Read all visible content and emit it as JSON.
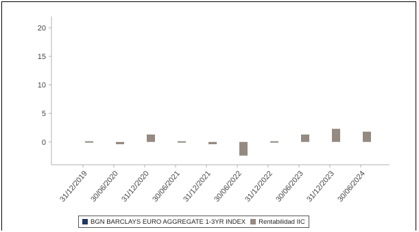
{
  "chart_data": {
    "type": "bar",
    "categories": [
      "31/12/2019",
      "30/06/2020",
      "31/12/2020",
      "30/06/2021",
      "31/12/2021",
      "30/06/2022",
      "31/12/2022",
      "30/06/2023",
      "31/12/2023",
      "30/06/2024"
    ],
    "series": [
      {
        "name": "BGN BARCLAYS EURO AGGREGATE 1-3YR INDEX",
        "color": "#1f3864",
        "values": [
          null,
          null,
          null,
          null,
          null,
          null,
          null,
          null,
          null,
          null
        ]
      },
      {
        "name": "Rentabilidad IIC",
        "color": "#948a80",
        "values": [
          0.1,
          -0.4,
          1.3,
          -0.2,
          -0.4,
          -2.4,
          0.1,
          1.3,
          2.3,
          1.8
        ]
      }
    ],
    "yticks": [
      0,
      5,
      10,
      15,
      20
    ],
    "ylim": [
      -4,
      22
    ],
    "grid": false,
    "legend_position": "bottom",
    "title": "",
    "xlabel": "",
    "ylabel": ""
  }
}
